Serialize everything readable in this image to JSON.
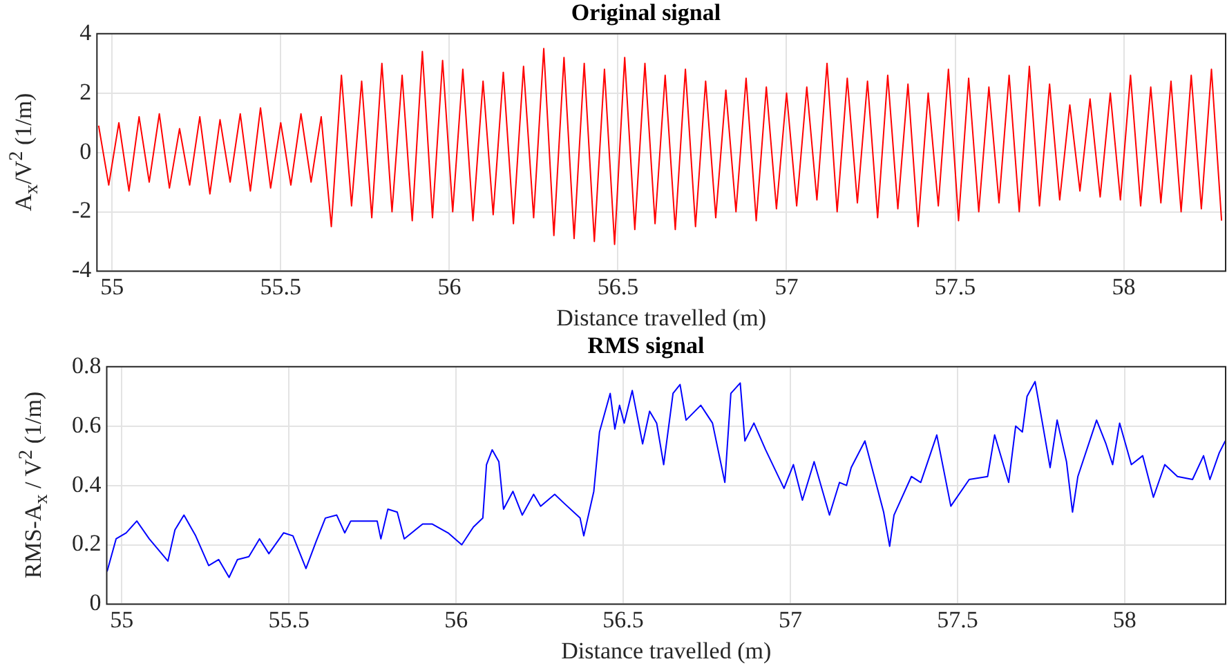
{
  "chart_data": [
    {
      "type": "line",
      "title": "Original signal",
      "xlabel": "Distance travelled (m)",
      "ylabel": "A$_{x}$/V$^{2}$ (1/m)",
      "xlim": [
        54.955,
        58.302
      ],
      "xticks": [
        55,
        55.5,
        56,
        56.5,
        57,
        57.5,
        58
      ],
      "ylim": [
        -4,
        4
      ],
      "yticks": [
        -4,
        -2,
        0,
        2,
        4
      ],
      "grid": true,
      "series": [
        {
          "color": "#ff0000",
          "x": [
            54.96,
            54.99,
            55.02,
            55.05,
            55.08,
            55.11,
            55.14,
            55.17,
            55.2,
            55.23,
            55.26,
            55.29,
            55.32,
            55.35,
            55.38,
            55.41,
            55.44,
            55.47,
            55.5,
            55.53,
            55.56,
            55.59,
            55.62,
            55.65,
            55.68,
            55.71,
            55.74,
            55.77,
            55.8,
            55.83,
            55.86,
            55.89,
            55.92,
            55.95,
            55.98,
            56.01,
            56.04,
            56.07,
            56.1,
            56.13,
            56.16,
            56.19,
            56.22,
            56.25,
            56.28,
            56.31,
            56.34,
            56.37,
            56.4,
            56.43,
            56.46,
            56.49,
            56.52,
            56.55,
            56.58,
            56.61,
            56.64,
            56.67,
            56.7,
            56.73,
            56.76,
            56.79,
            56.82,
            56.85,
            56.88,
            56.91,
            56.94,
            56.97,
            57.0,
            57.03,
            57.06,
            57.09,
            57.12,
            57.15,
            57.18,
            57.21,
            57.24,
            57.27,
            57.3,
            57.33,
            57.36,
            57.39,
            57.42,
            57.45,
            57.48,
            57.51,
            57.54,
            57.57,
            57.6,
            57.63,
            57.66,
            57.69,
            57.72,
            57.75,
            57.78,
            57.81,
            57.84,
            57.87,
            57.9,
            57.93,
            57.96,
            57.99,
            58.02,
            58.05,
            58.08,
            58.11,
            58.14,
            58.17,
            58.2,
            58.23,
            58.26,
            58.29
          ],
          "values": [
            0.9,
            -1.1,
            1.0,
            -1.3,
            1.2,
            -1.0,
            1.3,
            -1.2,
            0.8,
            -1.1,
            1.2,
            -1.4,
            1.1,
            -1.0,
            1.3,
            -1.3,
            1.5,
            -1.2,
            1.0,
            -1.1,
            1.3,
            -1.0,
            1.2,
            -2.5,
            2.6,
            -1.8,
            2.4,
            -2.2,
            3.0,
            -2.0,
            2.6,
            -2.3,
            3.4,
            -2.2,
            3.1,
            -2.0,
            2.8,
            -2.3,
            2.4,
            -2.1,
            2.7,
            -2.4,
            2.9,
            -2.2,
            3.5,
            -2.8,
            3.2,
            -2.9,
            3.0,
            -3.0,
            2.8,
            -3.1,
            3.2,
            -2.6,
            3.0,
            -2.4,
            2.6,
            -2.6,
            2.8,
            -2.5,
            2.4,
            -2.2,
            2.1,
            -2.0,
            2.5,
            -2.3,
            2.2,
            -1.9,
            2.0,
            -1.8,
            2.2,
            -1.6,
            3.0,
            -2.0,
            2.5,
            -1.7,
            2.4,
            -2.2,
            2.6,
            -1.9,
            2.3,
            -2.5,
            2.0,
            -1.8,
            2.8,
            -2.3,
            2.5,
            -2.0,
            2.2,
            -1.7,
            2.6,
            -2.0,
            2.9,
            -1.8,
            2.3,
            -1.6,
            1.6,
            -1.3,
            1.8,
            -1.5,
            2.0,
            -1.6,
            2.6,
            -1.8,
            2.2,
            -1.7,
            2.4,
            -2.0,
            2.6,
            -1.9,
            2.8,
            -2.3
          ]
        }
      ]
    },
    {
      "type": "line",
      "title": "RMS signal",
      "xlabel": "Distance travelled (m)",
      "ylabel": "RMS-A$_{x}$ / V$^{2}$ (1/m)",
      "xlim": [
        54.955,
        58.302
      ],
      "xticks": [
        55,
        55.5,
        56,
        56.5,
        57,
        57.5,
        58
      ],
      "ylim": [
        0,
        0.8
      ],
      "yticks": [
        0,
        0.2,
        0.4,
        0.6,
        0.8
      ],
      "grid": true,
      "series": [
        {
          "color": "#0000ff",
          "x": [
            54.956,
            54.983,
            55.013,
            55.045,
            55.082,
            55.138,
            55.159,
            55.186,
            55.221,
            55.26,
            55.29,
            55.321,
            55.346,
            55.38,
            55.412,
            55.44,
            55.484,
            55.512,
            55.551,
            55.581,
            55.609,
            55.643,
            55.667,
            55.685,
            55.764,
            55.775,
            55.796,
            55.824,
            55.845,
            55.9,
            55.928,
            55.976,
            56.017,
            56.052,
            56.08,
            56.091,
            56.108,
            56.128,
            56.142,
            56.17,
            56.198,
            56.232,
            56.253,
            56.295,
            56.323,
            56.371,
            56.382,
            56.412,
            56.429,
            56.461,
            56.475,
            56.489,
            56.503,
            56.527,
            56.558,
            56.579,
            56.6,
            56.621,
            56.649,
            56.67,
            56.688,
            56.732,
            56.767,
            56.804,
            56.822,
            56.85,
            56.864,
            56.891,
            56.926,
            56.981,
            57.009,
            57.036,
            57.071,
            57.117,
            57.147,
            57.168,
            57.182,
            57.223,
            57.279,
            57.297,
            57.31,
            57.362,
            57.39,
            57.438,
            57.48,
            57.535,
            57.59,
            57.611,
            57.653,
            57.674,
            57.694,
            57.708,
            57.732,
            57.754,
            57.777,
            57.798,
            57.826,
            57.844,
            57.86,
            57.916,
            57.944,
            57.964,
            57.985,
            58.02,
            58.054,
            58.086,
            58.12,
            58.158,
            58.203,
            58.236,
            58.255,
            58.283,
            58.301
          ],
          "values": [
            0.11,
            0.22,
            0.24,
            0.28,
            0.22,
            0.145,
            0.25,
            0.3,
            0.23,
            0.13,
            0.15,
            0.09,
            0.15,
            0.16,
            0.22,
            0.17,
            0.24,
            0.23,
            0.12,
            0.21,
            0.29,
            0.3,
            0.24,
            0.28,
            0.28,
            0.22,
            0.32,
            0.31,
            0.22,
            0.27,
            0.27,
            0.24,
            0.2,
            0.26,
            0.29,
            0.47,
            0.52,
            0.48,
            0.32,
            0.38,
            0.3,
            0.37,
            0.33,
            0.37,
            0.34,
            0.29,
            0.23,
            0.38,
            0.58,
            0.71,
            0.59,
            0.67,
            0.61,
            0.72,
            0.54,
            0.65,
            0.61,
            0.47,
            0.71,
            0.74,
            0.62,
            0.67,
            0.61,
            0.41,
            0.71,
            0.745,
            0.55,
            0.61,
            0.52,
            0.39,
            0.47,
            0.35,
            0.48,
            0.3,
            0.41,
            0.4,
            0.46,
            0.55,
            0.31,
            0.195,
            0.3,
            0.43,
            0.41,
            0.57,
            0.33,
            0.42,
            0.43,
            0.57,
            0.41,
            0.6,
            0.58,
            0.7,
            0.75,
            0.61,
            0.46,
            0.62,
            0.48,
            0.31,
            0.43,
            0.62,
            0.54,
            0.47,
            0.61,
            0.47,
            0.5,
            0.36,
            0.47,
            0.43,
            0.42,
            0.5,
            0.42,
            0.51,
            0.55
          ]
        }
      ]
    }
  ]
}
